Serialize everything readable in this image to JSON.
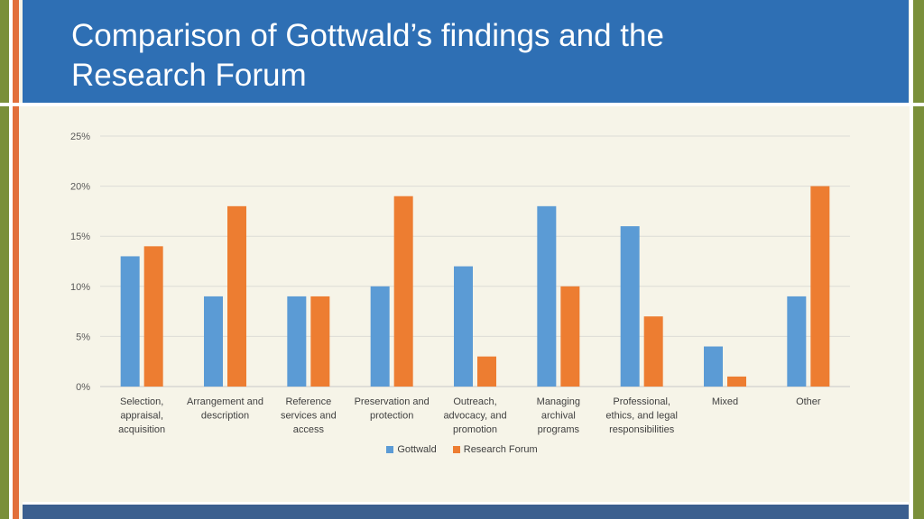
{
  "slide": {
    "title_line1": "Comparison of Gottwald’s findings and the",
    "title_line2": "Research Forum"
  },
  "colors": {
    "title_bar": "#2e6fb4",
    "gottwald": "#5b9bd5",
    "research_forum": "#ed7d31"
  },
  "chart_data": {
    "type": "bar",
    "title": "",
    "xlabel": "",
    "ylabel": "",
    "ylim": [
      0,
      25
    ],
    "yticks": [
      "0%",
      "5%",
      "10%",
      "15%",
      "20%",
      "25%"
    ],
    "grid": true,
    "legend_position": "bottom",
    "categories": [
      [
        "Selection,",
        "appraisal,",
        "acquisition"
      ],
      [
        "Arrangement and",
        "description"
      ],
      [
        "Reference",
        "services and",
        "access"
      ],
      [
        "Preservation and",
        "protection"
      ],
      [
        "Outreach,",
        "advocacy, and",
        "promotion"
      ],
      [
        "Managing",
        "archival",
        "programs"
      ],
      [
        "Professional,",
        "ethics, and legal",
        "responsibilities"
      ],
      [
        "Mixed"
      ],
      [
        "Other"
      ]
    ],
    "series": [
      {
        "name": "Gottwald",
        "values": [
          13,
          9,
          9,
          10,
          12,
          18,
          16,
          4,
          9
        ]
      },
      {
        "name": "Research Forum",
        "values": [
          14,
          18,
          9,
          19,
          3,
          10,
          7,
          1,
          20
        ]
      }
    ]
  }
}
